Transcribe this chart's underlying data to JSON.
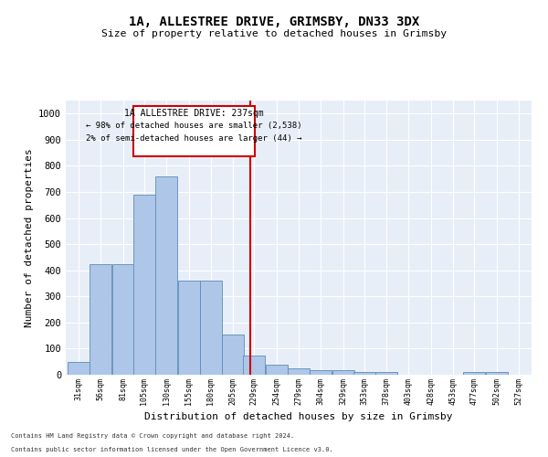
{
  "title": "1A, ALLESTREE DRIVE, GRIMSBY, DN33 3DX",
  "subtitle": "Size of property relative to detached houses in Grimsby",
  "xlabel": "Distribution of detached houses by size in Grimsby",
  "ylabel": "Number of detached properties",
  "bar_color": "#aec6e8",
  "bar_edge_color": "#5b8db8",
  "background_color": "#e8eef8",
  "grid_color": "#ffffff",
  "vline_x": 237,
  "vline_color": "#cc0000",
  "bins": [
    31,
    56,
    81,
    105,
    130,
    155,
    180,
    205,
    229,
    254,
    279,
    304,
    329,
    353,
    378,
    403,
    428,
    453,
    477,
    502,
    527
  ],
  "heights": [
    50,
    425,
    425,
    690,
    760,
    360,
    360,
    155,
    75,
    40,
    25,
    17,
    17,
    10,
    10,
    0,
    0,
    0,
    10,
    10,
    0
  ],
  "ylim": [
    0,
    1050
  ],
  "yticks": [
    0,
    100,
    200,
    300,
    400,
    500,
    600,
    700,
    800,
    900,
    1000
  ],
  "annotation_title": "1A ALLESTREE DRIVE: 237sqm",
  "annotation_line1": "← 98% of detached houses are smaller (2,538)",
  "annotation_line2": "2% of semi-detached houses are larger (44) →",
  "footnote1": "Contains HM Land Registry data © Crown copyright and database right 2024.",
  "footnote2": "Contains public sector information licensed under the Open Government Licence v3.0."
}
